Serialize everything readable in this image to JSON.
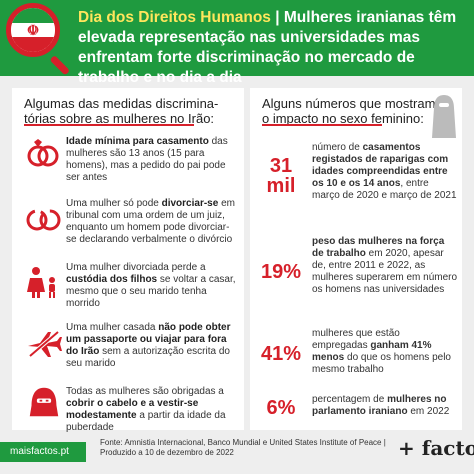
{
  "header": {
    "kicker": "Dia dos Direitos Humanos",
    "separator": " | ",
    "headline": "Mulheres iranianas têm elevada representação nas universidades mas enfrentam forte discriminação no mercado de trabalho e no dia a dia"
  },
  "left_panel": {
    "title_line1": "Algumas das medidas discrimina-",
    "title_line2": "tórias sobre as mulheres no Irão:",
    "items": [
      {
        "icon": "rings-icon",
        "bold": "Idade mínima para casamento",
        "rest": " das mulheres são 13 anos (15 para homens), mas a pedido do pai pode ser antes"
      },
      {
        "icon": "broken-rings-icon",
        "pre": "Uma mulher só pode ",
        "bold": "divorciar-se",
        "rest": " em tribunal com uma ordem de um juiz, enquanto um homem pode divorciar-se declarando verbalmente o divórcio"
      },
      {
        "icon": "family-icon",
        "pre": "Uma mulher divorciada perde a ",
        "bold": "custódia dos filhos",
        "rest": " se voltar a casar, mesmo que o seu marido tenha morrido"
      },
      {
        "icon": "no-travel-icon",
        "pre": "Uma mulher casada ",
        "bold": "não pode obter um passaporte ou viajar para fora do Irão",
        "rest": " sem a autorização escrita do seu marido"
      },
      {
        "icon": "niqab-icon",
        "pre": "Todas as mulheres são obrigadas a ",
        "bold": "cobrir o cabelo e a vestir-se modestamente",
        "rest": " a partir da idade da puberdade"
      }
    ]
  },
  "right_panel": {
    "title_line1": "Alguns números que mostram",
    "title_line2": "o impacto no sexo feminino:",
    "figure_icon": "hijab-woman-icon",
    "stats": [
      {
        "number": "31",
        "unit": "mil",
        "pre": "número de ",
        "bold": "casamentos registados de raparigas com idades compreendidas entre os 10 e os 14 anos",
        "rest": ", entre março de 2020 e março de 2021"
      },
      {
        "number": "19%",
        "unit": "",
        "pre": "",
        "bold": "peso das mulheres na força de trabalho",
        "rest": " em 2020, apesar de, entre 2011 e 2022, as mulheres superarem em número os homens nas universidades"
      },
      {
        "number": "41%",
        "unit": "",
        "pre": "mulheres que estão empregadas ",
        "bold": "ganham 41% menos",
        "rest": " do que os homens pelo mesmo trabalho"
      },
      {
        "number": "6%",
        "unit": "",
        "pre": "percentagem de ",
        "bold": "mulheres no parlamento iraniano",
        "rest": " em 2022"
      }
    ]
  },
  "footer": {
    "site": "maisfactos.pt",
    "source": "Fonte: Amnistia Internacional, Banco Mundial e United States Institute of Peace | Produzido a 10 de dezembro de 2022",
    "brand": "+ factos"
  },
  "colors": {
    "green": "#1f9a3f",
    "red": "#d6202a",
    "yellow": "#ffe65c"
  }
}
